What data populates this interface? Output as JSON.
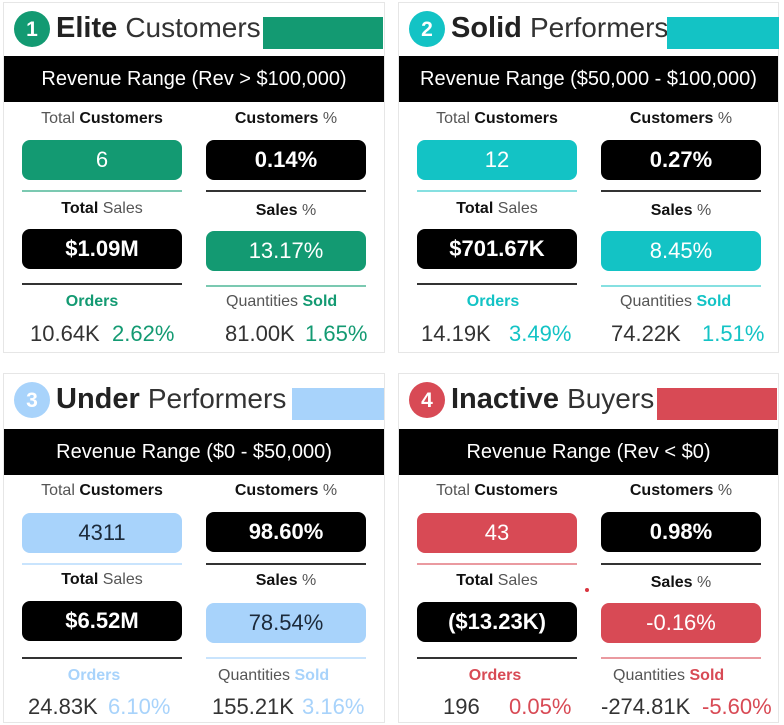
{
  "colors": {
    "elite": "#139a72",
    "solid": "#13c3c5",
    "under": "#a8d3fb",
    "inactive": "#d84a55"
  },
  "labels": {
    "total": "Total",
    "customers": "Customers",
    "customers_pct_suffix": "%",
    "sales": "Sales",
    "sales_pct_suffix": "%",
    "orders": "Orders",
    "quantities": "Quantities",
    "sold": "Sold"
  },
  "segments": [
    {
      "number": "1",
      "title_bold": "Elite",
      "title_light": "Customers",
      "revenue_range": "Revenue Range (Rev > $100,000)",
      "total_customers": "6",
      "customers_pct": "0.14%",
      "total_sales": "$1.09M",
      "sales_pct": "13.17%",
      "orders": "10.64K",
      "orders_pct": "2.62%",
      "quantities_sold": "81.00K",
      "quantities_pct": "1.65%"
    },
    {
      "number": "2",
      "title_bold": "Solid",
      "title_light": "Performers",
      "revenue_range": "Revenue Range ($50,000 - $100,000)",
      "total_customers": "12",
      "customers_pct": "0.27%",
      "total_sales": "$701.67K",
      "sales_pct": "8.45%",
      "orders": "14.19K",
      "orders_pct": "3.49%",
      "quantities_sold": "74.22K",
      "quantities_pct": "1.51%"
    },
    {
      "number": "3",
      "title_bold": "Under",
      "title_light": "Performers",
      "revenue_range": "Revenue Range ($0 - $50,000)",
      "total_customers": "4311",
      "customers_pct": "98.60%",
      "total_sales": "$6.52M",
      "sales_pct": "78.54%",
      "orders": "24.83K",
      "orders_pct": "6.10%",
      "quantities_sold": "155.21K",
      "quantities_pct": "3.16%"
    },
    {
      "number": "4",
      "title_bold": "Inactive",
      "title_light": "Buyers",
      "revenue_range": "Revenue Range (Rev < $0)",
      "total_customers": "43",
      "customers_pct": "0.98%",
      "total_sales": "($13.23K)",
      "sales_pct": "-0.16%",
      "orders": "196",
      "orders_pct": "0.05%",
      "quantities_sold": "-274.81K",
      "quantities_pct": "-5.60%"
    }
  ]
}
